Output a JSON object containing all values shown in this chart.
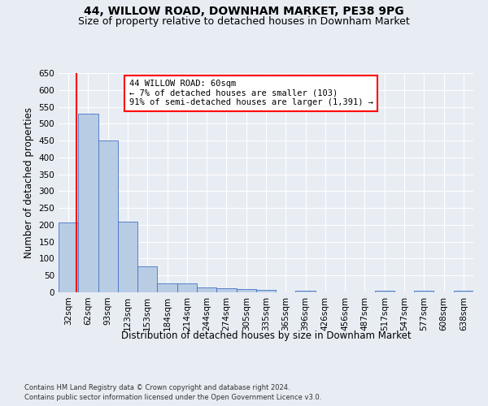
{
  "title_line1": "44, WILLOW ROAD, DOWNHAM MARKET, PE38 9PG",
  "title_line2": "Size of property relative to detached houses in Downham Market",
  "xlabel": "Distribution of detached houses by size in Downham Market",
  "ylabel": "Number of detached properties",
  "footer_line1": "Contains HM Land Registry data © Crown copyright and database right 2024.",
  "footer_line2": "Contains public sector information licensed under the Open Government Licence v3.0.",
  "categories": [
    "32sqm",
    "62sqm",
    "93sqm",
    "123sqm",
    "153sqm",
    "184sqm",
    "214sqm",
    "244sqm",
    "274sqm",
    "305sqm",
    "335sqm",
    "365sqm",
    "396sqm",
    "426sqm",
    "456sqm",
    "487sqm",
    "517sqm",
    "547sqm",
    "577sqm",
    "608sqm",
    "638sqm"
  ],
  "values": [
    207,
    530,
    450,
    210,
    77,
    27,
    26,
    15,
    13,
    10,
    8,
    0,
    5,
    0,
    0,
    0,
    5,
    0,
    5,
    0,
    5
  ],
  "bar_color": "#b8cce4",
  "bar_edge_color": "#4472c4",
  "annotation_box_text": "44 WILLOW ROAD: 60sqm\n← 7% of detached houses are smaller (103)\n91% of semi-detached houses are larger (1,391) →",
  "annotation_box_color": "white",
  "annotation_box_edge_color": "red",
  "vline_x_index": 0.42,
  "vline_color": "red",
  "ylim": [
    0,
    650
  ],
  "yticks": [
    0,
    50,
    100,
    150,
    200,
    250,
    300,
    350,
    400,
    450,
    500,
    550,
    600,
    650
  ],
  "background_color": "#e8edf4",
  "plot_background_color": "#e8edf4",
  "title_fontsize": 10,
  "subtitle_fontsize": 9,
  "tick_fontsize": 7.5,
  "xlabel_fontsize": 8.5,
  "ylabel_fontsize": 8.5,
  "annotation_fontsize": 7.5,
  "footer_fontsize": 6.0
}
